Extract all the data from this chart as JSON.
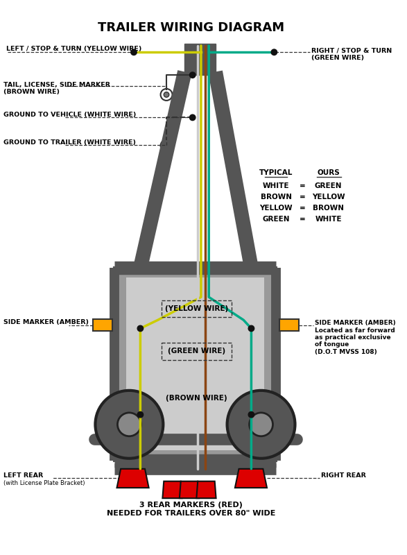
{
  "title": "TRAILER WIRING DIAGRAM",
  "bg_color": "#ffffff",
  "frame_color": "#555555",
  "wire_colors": {
    "yellow": "#cccc00",
    "green": "#00aa88",
    "brown": "#8B4513",
    "white_wire": "#cccccc"
  },
  "labels": {
    "left_stop": "LEFT / STOP & TURN (YELLOW WIRE)",
    "right_stop": "RIGHT / STOP & TURN\n(GREEN WIRE)",
    "tail": "TAIL, LICENSE, SIDE MARKER\n(BROWN WIRE)",
    "ground_vehicle": "GROUND TO VEHICLE (WHITE WIRE)",
    "ground_trailer": "GROUND TO TRAILER (WHITE WIRE)",
    "yellow_wire": "(YELLOW WIRE)",
    "green_wire": "(GREEN WIRE)",
    "brown_wire": "(BROWN WIRE)",
    "side_marker_left": "SIDE MARKER (AMBER)",
    "side_marker_right": "SIDE MARKER (AMBER)\nLocated as far forward\nas practical exclusive\nof tongue\n(D.O.T MVSS 108)",
    "left_rear": "LEFT REAR",
    "left_rear_sub": "(with License Plate Bracket)",
    "right_rear": "RIGHT REAR",
    "rear_markers": "3 REAR MARKERS (RED)\nNEEDED FOR TRAILERS OVER 80\" WIDE",
    "typical_title": "TYPICAL",
    "ours_title": "OURS",
    "typical_rows": [
      "WHITE",
      "BROWN",
      "YELLOW",
      "GREEN"
    ],
    "ours_rows": [
      "GREEN",
      "YELLOW",
      "BROWN",
      "WHITE"
    ]
  },
  "amber_color": "#FFA500",
  "red_color": "#DD0000",
  "dark_color": "#333333"
}
